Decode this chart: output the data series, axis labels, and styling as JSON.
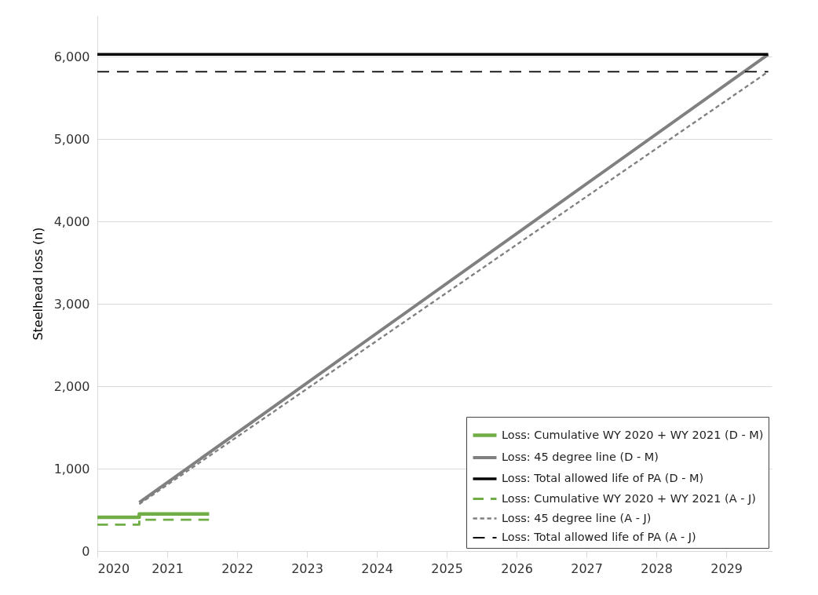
{
  "chart_data": {
    "type": "line",
    "ylabel": "Steelhead loss (n)",
    "xlim": [
      2020,
      2029.65
    ],
    "xticks": [
      2020,
      2021,
      2022,
      2023,
      2024,
      2025,
      2026,
      2027,
      2028,
      2029
    ],
    "ylim": [
      0,
      6500
    ],
    "yticks": [
      0,
      {
        "value": 1000,
        "label": "1,000"
      },
      {
        "value": 2000,
        "label": "2,000"
      },
      {
        "value": 3000,
        "label": "3,000"
      },
      {
        "value": 4000,
        "label": "4,000"
      },
      {
        "value": 5000,
        "label": "5,000"
      },
      {
        "value": 6000,
        "label": "6,000"
      }
    ],
    "grid": "y",
    "legend": "bottom right",
    "series": [
      {
        "name": "Loss: Cumulative WY 2020 + WY 2021 (D - M)",
        "type": "step",
        "color": "#70ad47",
        "line_style": "solid",
        "x": [
          2020,
          2020.6,
          2021.6
        ],
        "values": [
          410,
          450,
          450
        ]
      },
      {
        "name": "Loss: 45 degree line (D - M)",
        "color": "#808080",
        "line_style": "solid",
        "x": [
          2020.6,
          2029.6
        ],
        "values": [
          590,
          6030
        ]
      },
      {
        "name": "Loss: Total allowed life of PA (D - M)",
        "color": "#000000",
        "line_style": "solid",
        "x": [
          2020,
          2029.6
        ],
        "values": [
          6030,
          6030
        ]
      },
      {
        "name": "Loss: Cumulative WY 2020 + WY 2021 (A - J)",
        "type": "step",
        "color": "#70ad47",
        "line_style": "dashed",
        "x": [
          2020,
          2020.6,
          2021.6
        ],
        "values": [
          320,
          380,
          380
        ]
      },
      {
        "name": "Loss: 45 degree line (A - J)",
        "color": "#808080",
        "line_style": "dashed",
        "x": [
          2020.6,
          2029.6
        ],
        "values": [
          570,
          5820
        ]
      },
      {
        "name": "Loss: Total allowed life of PA (A - J)",
        "color": "#000000",
        "line_style": "dashed",
        "x": [
          2020,
          2029.6
        ],
        "values": [
          5820,
          5820
        ]
      }
    ]
  }
}
